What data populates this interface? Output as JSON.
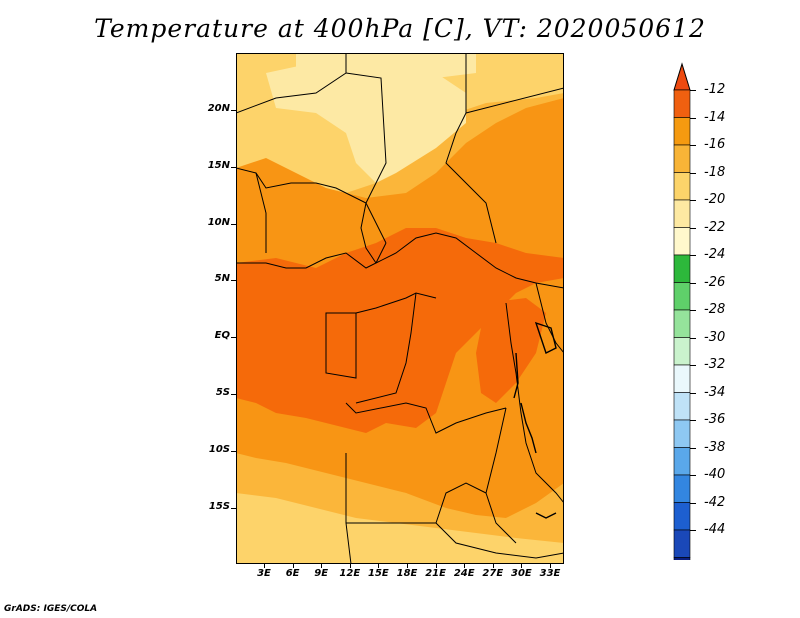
{
  "title": "Temperature at 400hPa [C], VT: 2020050612",
  "credit": "GrADS: IGES/COLA",
  "y_ticks": [
    "20N",
    "15N",
    "10N",
    "5N",
    "EQ",
    "5S",
    "10S",
    "15S"
  ],
  "x_ticks": [
    "3E",
    "6E",
    "9E",
    "12E",
    "15E",
    "18E",
    "21E",
    "24E",
    "27E",
    "30E",
    "33E"
  ],
  "colorbar": {
    "labels": [
      "-12",
      "-14",
      "-16",
      "-18",
      "-20",
      "-22",
      "-24",
      "-26",
      "-28",
      "-30",
      "-32",
      "-34",
      "-36",
      "-38",
      "-40",
      "-42",
      "-44"
    ],
    "colors": [
      "#f06010",
      "#f59a10",
      "#f8b437",
      "#fcd46a",
      "#fde9a2",
      "#fff8cc",
      "#2db83b",
      "#5fd06a",
      "#95e39b",
      "#caf3cd",
      "#eaf8fc",
      "#bfe2f7",
      "#8ec8f2",
      "#5aa8ea",
      "#3386e0",
      "#1d5fd0",
      "#1a48b8",
      "#0b1f80"
    ],
    "top_color": "#ee4a10",
    "bottom_color": "#dcdcf8"
  },
  "map_colors": {
    "c12": "#f56a0a",
    "c14": "#f89514",
    "c16": "#fbb63a",
    "c18": "#fdd36a",
    "c20": "#fde9a4",
    "border": "#000000"
  }
}
